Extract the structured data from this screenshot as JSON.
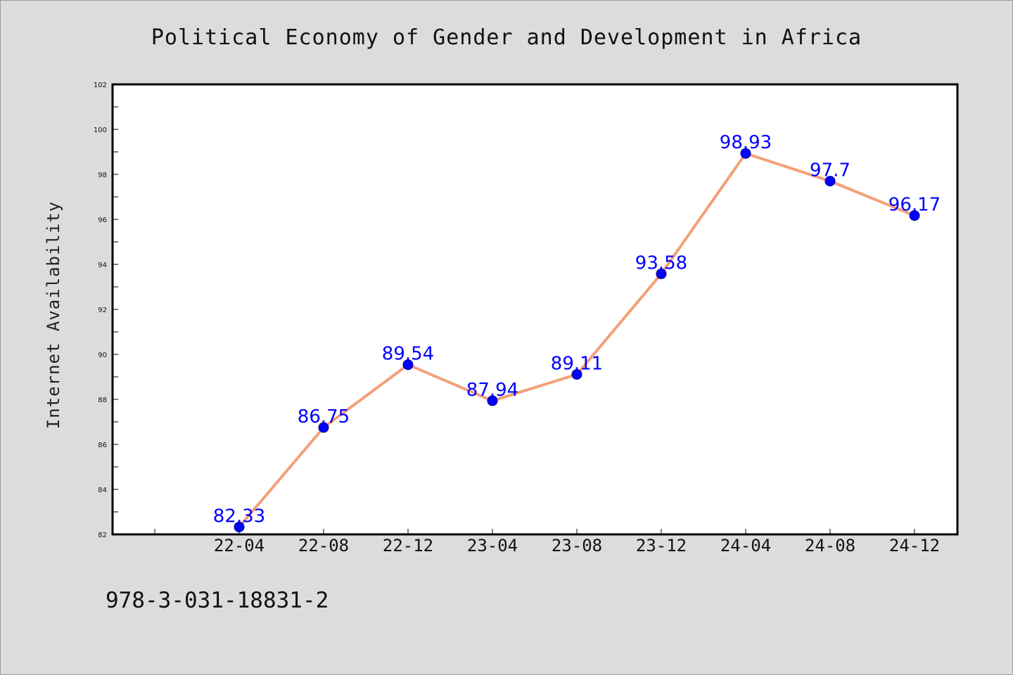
{
  "chart_data": {
    "type": "line",
    "title": "Political Economy of Gender and Development in Africa",
    "xlabel": "",
    "ylabel": "Internet Availability",
    "categories": [
      "22-04",
      "22-08",
      "22-12",
      "23-04",
      "23-08",
      "23-12",
      "24-04",
      "24-08",
      "24-12"
    ],
    "series": [
      {
        "values": [
          82.33,
          86.75,
          89.54,
          87.94,
          89.11,
          93.58,
          98.93,
          97.7,
          96.17
        ]
      }
    ],
    "data_labels": [
      "82.33",
      "86.75",
      "89.54",
      "87.94",
      "89.11",
      "93.58",
      "98.93",
      "97.7",
      "96.17"
    ],
    "ylim": [
      82,
      102
    ],
    "yticks": [
      "82",
      "84",
      "86",
      "88",
      "90",
      "92",
      "94",
      "96",
      "98",
      "100",
      "102"
    ],
    "grid": false,
    "legend": "none",
    "line_color": "#f4a07a",
    "marker_color": "#0000ff",
    "label_color": "#0000ff"
  },
  "footer": {
    "isbn": "978-3-031-18831-2"
  }
}
